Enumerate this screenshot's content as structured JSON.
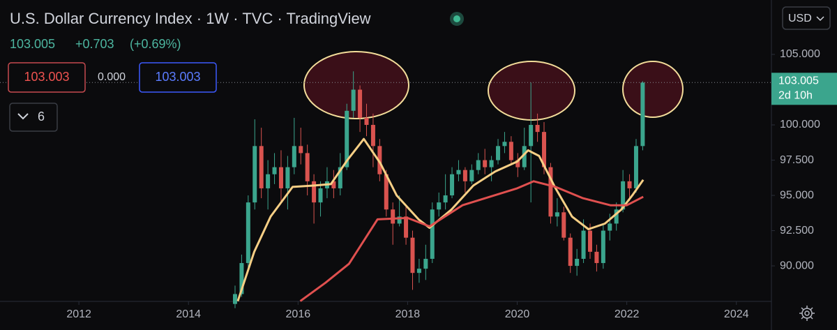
{
  "header": {
    "title": "U.S. Dollar Currency Index · 1W · TVC · TradingView",
    "price": "103.005",
    "change": "+0.703",
    "change_pct": "(+0.69%)"
  },
  "toolbar": {
    "sell": "103.003",
    "spread": "0.000",
    "buy": "103.003",
    "indicators": "6",
    "currency": "USD"
  },
  "chart_data": {
    "type": "candlestick",
    "xlim": [
      2010.56,
      2024.64
    ],
    "xticks": [
      2012,
      2014,
      2016,
      2018,
      2020,
      2022,
      2024
    ],
    "ylim": [
      87.48,
      108.86
    ],
    "yticks": [
      {
        "value": 90,
        "label": "90.000"
      },
      {
        "value": 92.5,
        "label": "92.500"
      },
      {
        "value": 95,
        "label": "95.000"
      },
      {
        "value": 97.5,
        "label": "97.500"
      },
      {
        "value": 100,
        "label": "100.000"
      },
      {
        "value": 105,
        "label": "105.000"
      }
    ],
    "up_color": "#3ba58d",
    "down_color": "#d9534f",
    "price_line": 103.005,
    "countdown": "2d 10h",
    "x": [
      2014.85,
      2014.97,
      2015.09,
      2015.21,
      2015.33,
      2015.45,
      2015.57,
      2015.69,
      2015.81,
      2015.93,
      2016.05,
      2016.17,
      2016.29,
      2016.41,
      2016.53,
      2016.65,
      2016.77,
      2016.89,
      2017.01,
      2017.13,
      2017.25,
      2017.37,
      2017.49,
      2017.61,
      2017.73,
      2017.85,
      2017.97,
      2018.09,
      2018.21,
      2018.33,
      2018.45,
      2018.57,
      2018.69,
      2018.81,
      2018.93,
      2019.05,
      2019.17,
      2019.29,
      2019.41,
      2019.53,
      2019.65,
      2019.77,
      2019.89,
      2020.01,
      2020.13,
      2020.25,
      2020.37,
      2020.49,
      2020.61,
      2020.73,
      2020.85,
      2020.97,
      2021.09,
      2021.21,
      2021.33,
      2021.45,
      2021.57,
      2021.69,
      2021.81,
      2021.93,
      2022.05,
      2022.17,
      2022.29
    ],
    "ohlc": [
      [
        87.3,
        88.6,
        87.0,
        88.0
      ],
      [
        88.0,
        90.8,
        87.8,
        90.2
      ],
      [
        90.2,
        95.0,
        89.8,
        94.5
      ],
      [
        94.5,
        100.4,
        94.0,
        98.5
      ],
      [
        98.5,
        99.8,
        94.8,
        95.5
      ],
      [
        95.5,
        97.5,
        94.0,
        96.5
      ],
      [
        96.5,
        98.0,
        95.8,
        97.0
      ],
      [
        97.0,
        98.2,
        94.5,
        95.5
      ],
      [
        95.5,
        97.8,
        94.0,
        97.0
      ],
      [
        97.0,
        100.5,
        96.5,
        98.5
      ],
      [
        98.5,
        99.8,
        97.2,
        98.0
      ],
      [
        98.0,
        98.6,
        95.0,
        96.0
      ],
      [
        96.0,
        96.5,
        93.0,
        94.5
      ],
      [
        94.5,
        96.0,
        93.5,
        95.5
      ],
      [
        95.5,
        97.0,
        94.8,
        96.0
      ],
      [
        96.0,
        96.8,
        94.8,
        95.5
      ],
      [
        95.5,
        98.0,
        95.0,
        97.0
      ],
      [
        97.0,
        101.5,
        96.8,
        101.0
      ],
      [
        101.0,
        103.8,
        100.5,
        102.5
      ],
      [
        102.5,
        102.8,
        99.5,
        100.5
      ],
      [
        100.5,
        101.5,
        99.2,
        100.0
      ],
      [
        100.0,
        100.8,
        97.0,
        98.5
      ],
      [
        98.5,
        99.0,
        96.0,
        96.5
      ],
      [
        96.5,
        96.8,
        93.5,
        94.0
      ],
      [
        94.0,
        94.5,
        91.5,
        93.0
      ],
      [
        93.0,
        95.0,
        92.8,
        93.5
      ],
      [
        93.5,
        94.2,
        91.5,
        92.0
      ],
      [
        92.0,
        92.5,
        88.3,
        89.5
      ],
      [
        89.5,
        90.5,
        88.8,
        89.8
      ],
      [
        89.8,
        91.5,
        89.0,
        90.5
      ],
      [
        90.5,
        94.5,
        90.2,
        94.0
      ],
      [
        94.0,
        95.2,
        93.5,
        94.5
      ],
      [
        94.5,
        96.5,
        94.0,
        95.0
      ],
      [
        95.0,
        97.0,
        94.8,
        96.5
      ],
      [
        96.5,
        97.5,
        96.0,
        96.8
      ],
      [
        96.8,
        97.0,
        95.2,
        96.0
      ],
      [
        96.0,
        97.2,
        95.8,
        96.8
      ],
      [
        96.8,
        98.0,
        96.5,
        97.5
      ],
      [
        97.5,
        98.3,
        96.5,
        97.0
      ],
      [
        97.0,
        97.8,
        96.0,
        97.5
      ],
      [
        97.5,
        99.0,
        97.2,
        98.5
      ],
      [
        98.5,
        99.5,
        98.0,
        98.8
      ],
      [
        98.8,
        99.2,
        97.2,
        97.5
      ],
      [
        97.5,
        98.0,
        96.3,
        97.0
      ],
      [
        97.0,
        99.8,
        96.8,
        98.5
      ],
      [
        98.5,
        103.0,
        94.5,
        100.0
      ],
      [
        100.0,
        100.8,
        98.8,
        99.5
      ],
      [
        99.5,
        100.2,
        96.5,
        97.0
      ],
      [
        97.0,
        97.3,
        93.0,
        93.5
      ],
      [
        93.5,
        94.8,
        92.8,
        93.8
      ],
      [
        93.8,
        94.2,
        91.8,
        92.0
      ],
      [
        92.0,
        92.3,
        89.5,
        90.0
      ],
      [
        90.0,
        91.2,
        89.3,
        90.5
      ],
      [
        90.5,
        93.3,
        90.2,
        92.5
      ],
      [
        92.5,
        93.0,
        90.5,
        91.0
      ],
      [
        91.0,
        91.5,
        89.6,
        90.2
      ],
      [
        90.2,
        93.0,
        89.8,
        92.5
      ],
      [
        92.5,
        93.7,
        91.8,
        93.0
      ],
      [
        93.0,
        94.5,
        92.5,
        94.0
      ],
      [
        94.0,
        96.8,
        93.8,
        96.0
      ],
      [
        96.0,
        96.5,
        94.6,
        95.5
      ],
      [
        95.5,
        99.0,
        95.2,
        98.5
      ],
      [
        98.5,
        103.1,
        98.2,
        103.0
      ]
    ],
    "lines": [
      {
        "color": "#f7cf85",
        "x": [
          2014.9,
          2015.2,
          2015.5,
          2015.9,
          2016.3,
          2016.6,
          2016.9,
          2017.2,
          2017.5,
          2017.8,
          2018.2,
          2018.4,
          2018.8,
          2019.2,
          2019.6,
          2020.0,
          2020.2,
          2020.4,
          2020.7,
          2021.0,
          2021.3,
          2021.6,
          2021.9,
          2022.1,
          2022.3
        ],
        "values": [
          87.5,
          91.0,
          93.5,
          95.6,
          95.7,
          95.8,
          97.5,
          99.0,
          97.3,
          95.0,
          93.3,
          92.7,
          94.0,
          95.7,
          96.7,
          97.4,
          98.2,
          97.8,
          95.5,
          93.5,
          92.6,
          93.0,
          94.0,
          95.0,
          96.1
        ]
      },
      {
        "color": "#e0504f",
        "x": [
          2016.04,
          2016.5,
          2016.93,
          2017.45,
          2018.0,
          2018.4,
          2019.0,
          2019.5,
          2020.0,
          2020.3,
          2020.7,
          2021.2,
          2021.7,
          2022.0,
          2022.3
        ],
        "values": [
          87.5,
          88.8,
          90.15,
          93.3,
          93.4,
          92.8,
          94.3,
          94.9,
          95.5,
          96.0,
          95.6,
          94.8,
          94.3,
          94.3,
          94.9
        ]
      }
    ]
  }
}
